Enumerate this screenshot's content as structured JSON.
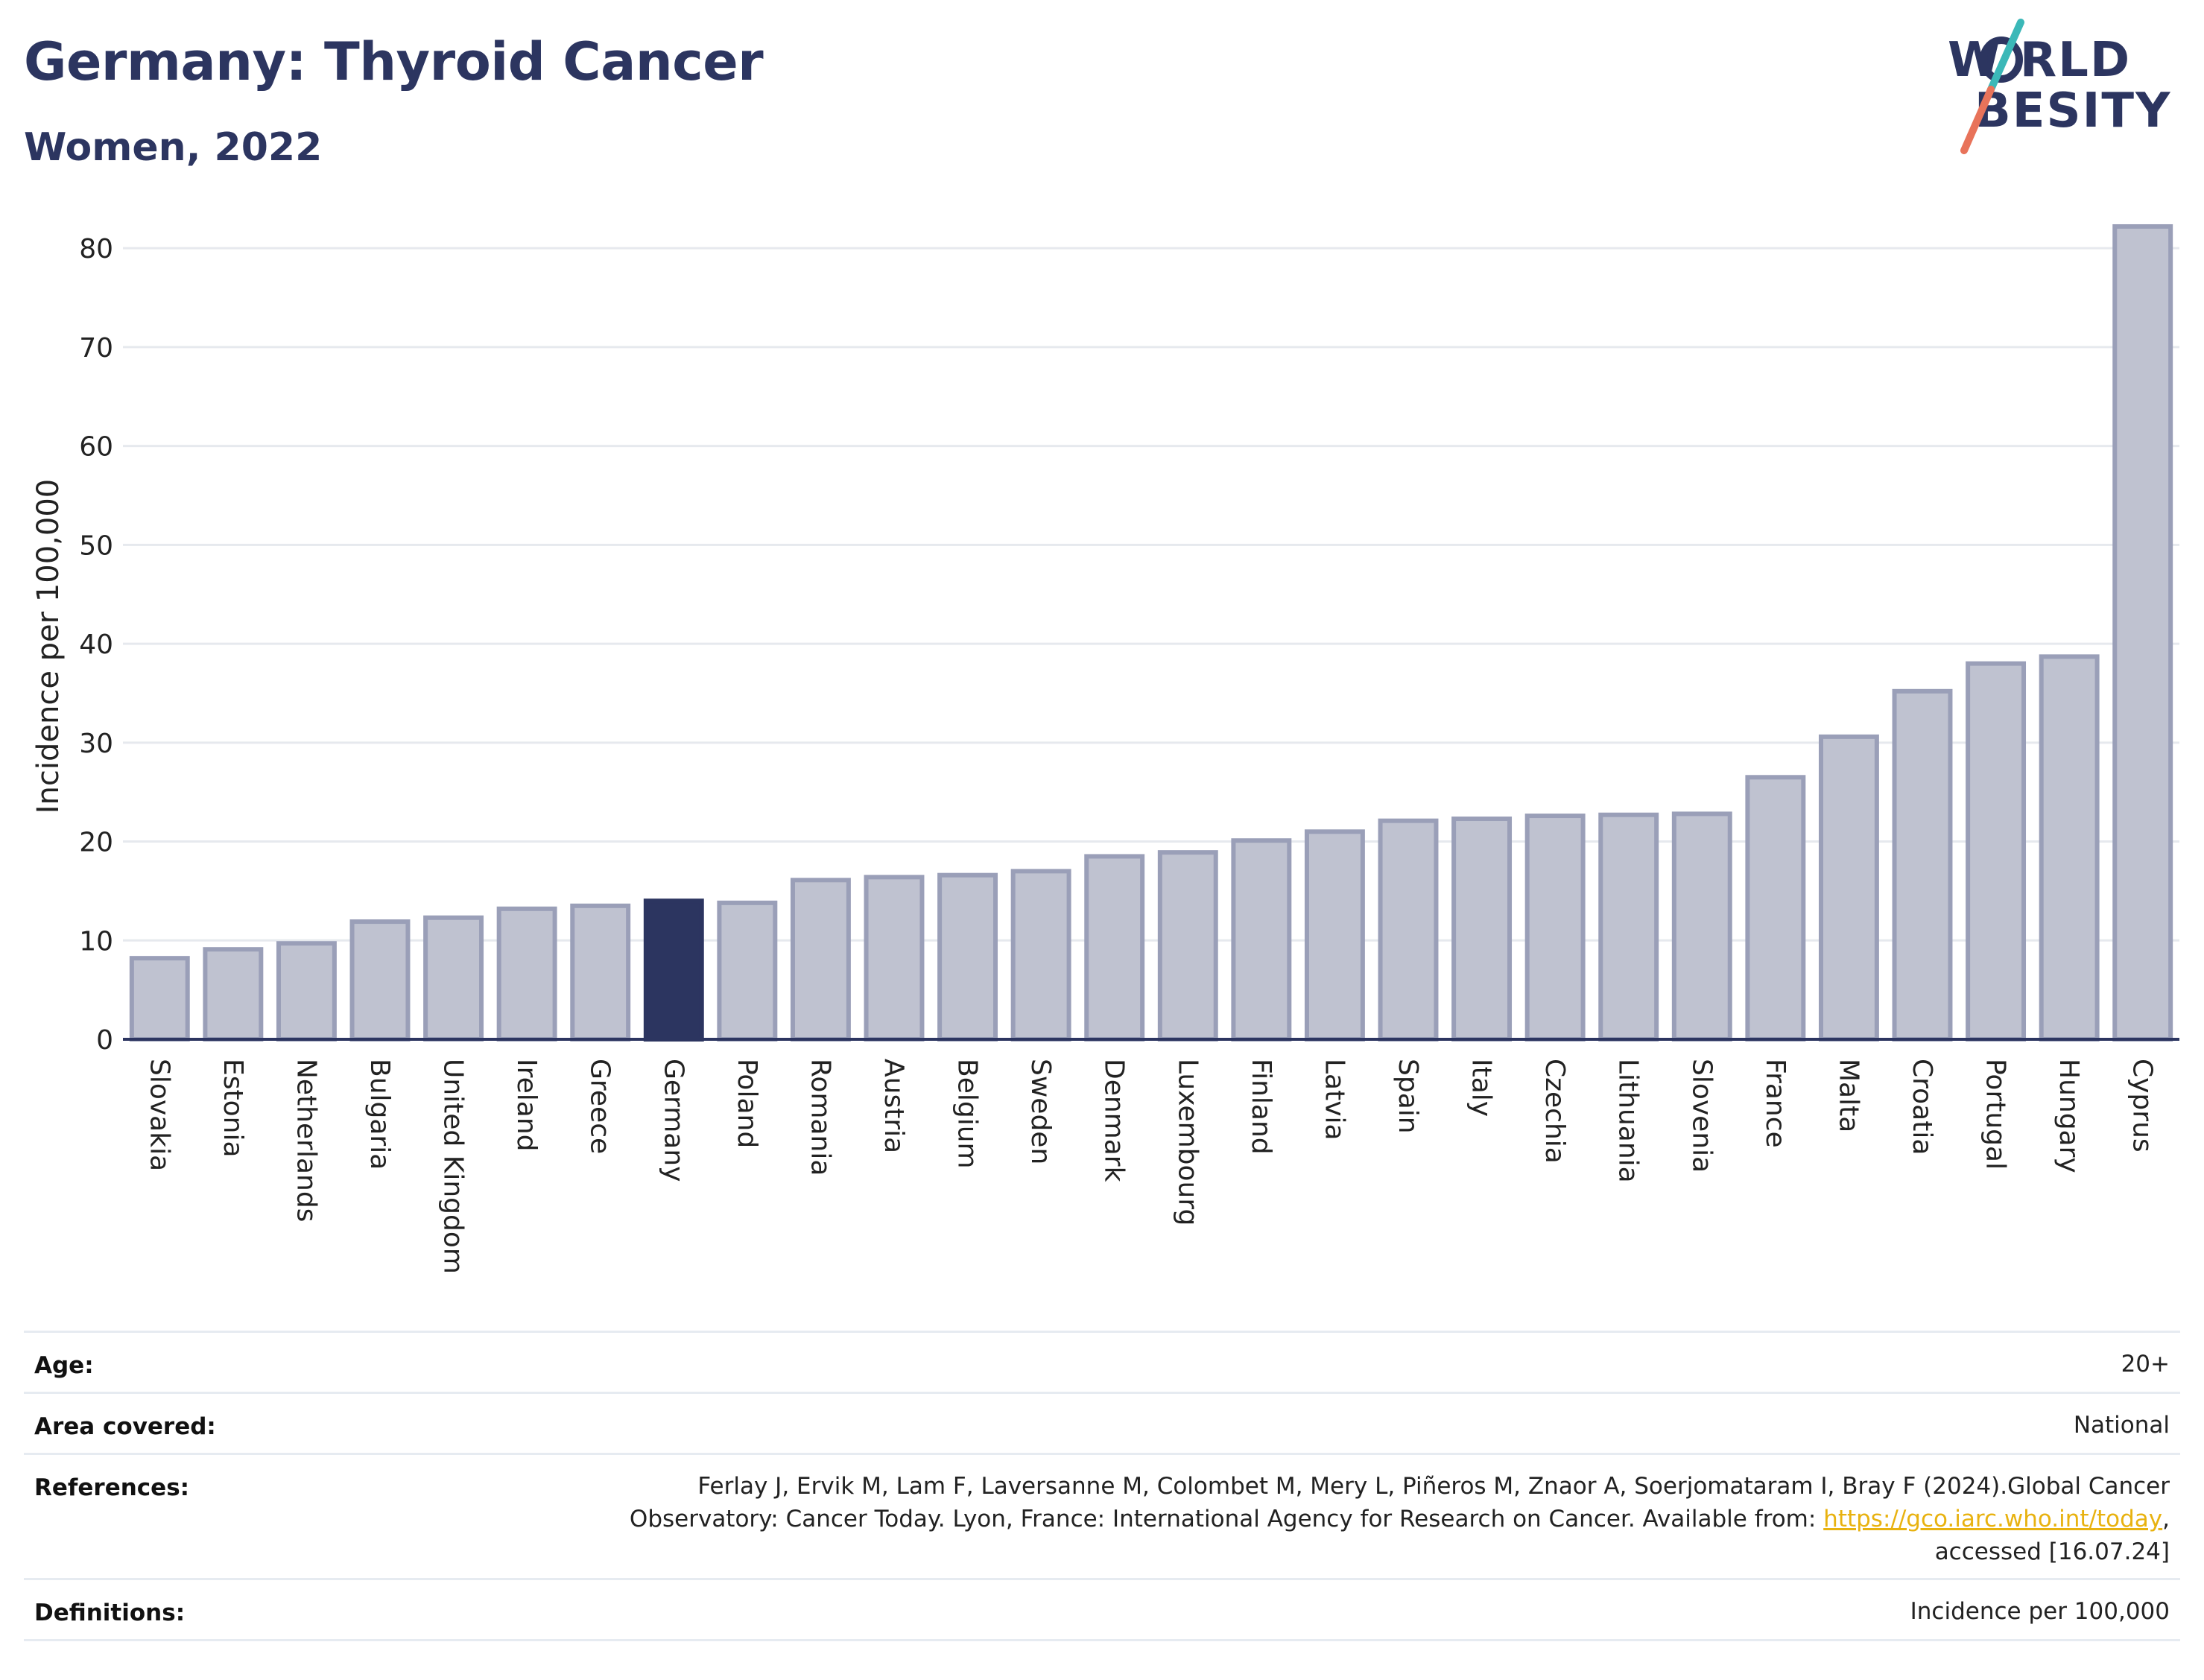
{
  "header": {
    "title": "Germany: Thyroid Cancer",
    "subtitle": "Women, 2022"
  },
  "logo": {
    "line1": "W RLD",
    "line2": "BESITY",
    "text": "WORLD OBESITY",
    "colors": {
      "text": "#2c3560",
      "slash_top": "#3bb8b8",
      "slash_bottom": "#e8735a"
    }
  },
  "chart_data": {
    "type": "bar",
    "ylabel": "Incidence per 100,000",
    "xlabel": "",
    "ylim": [
      0,
      82.5
    ],
    "yticks": [
      0,
      10,
      20,
      30,
      40,
      50,
      60,
      70,
      80
    ],
    "grid": true,
    "highlight": "Germany",
    "colors": {
      "bar": "#bfc2d0",
      "bar_edge": "#9a9fb8",
      "highlight": "#2c3560",
      "grid": "#e6e9ee",
      "axis": "#2c3560"
    },
    "categories": [
      "Slovakia",
      "Estonia",
      "Netherlands",
      "Bulgaria",
      "United Kingdom",
      "Ireland",
      "Greece",
      "Germany",
      "Poland",
      "Romania",
      "Austria",
      "Belgium",
      "Sweden",
      "Denmark",
      "Luxembourg",
      "Finland",
      "Latvia",
      "Spain",
      "Italy",
      "Czechia",
      "Lithuania",
      "Slovenia",
      "France",
      "Malta",
      "Croatia",
      "Portugal",
      "Hungary",
      "Cyprus"
    ],
    "values": [
      8.2,
      9.1,
      9.7,
      11.9,
      12.3,
      13.2,
      13.5,
      14.0,
      13.8,
      16.1,
      16.4,
      16.6,
      17.0,
      18.5,
      18.9,
      20.1,
      21.0,
      22.1,
      22.3,
      22.6,
      22.7,
      22.8,
      26.5,
      30.6,
      35.2,
      38.0,
      38.7,
      82.2
    ]
  },
  "info": {
    "age_label": "Age:",
    "age_value": "20+",
    "area_label": "Area covered:",
    "area_value": "National",
    "references_label": "References:",
    "references_line1": "Ferlay J, Ervik M, Lam F, Laversanne M, Colombet M, Mery L, Piñeros M, Znaor A, Soerjomataram I, Bray F (2024).Global Cancer",
    "references_line2_prefix": "Observatory: Cancer Today. Lyon, France: International Agency for Research on Cancer. Available from: ",
    "references_link": "https://gco.iarc.who.int/today",
    "references_line2_suffix": ",",
    "references_line3": "accessed [16.07.24]",
    "definitions_label": "Definitions:",
    "definitions_value": "Incidence per 100,000"
  }
}
